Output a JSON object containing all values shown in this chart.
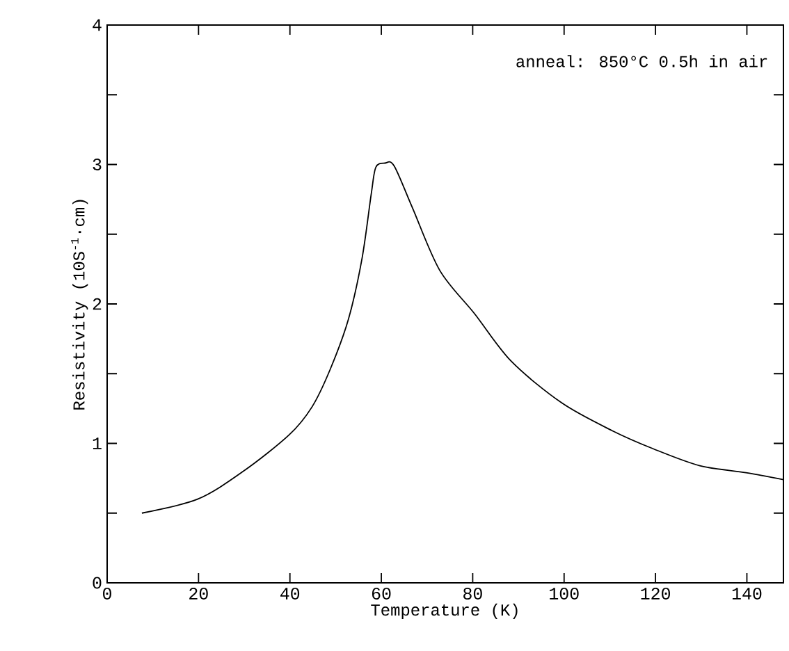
{
  "chart_data": {
    "type": "line",
    "xlabel": "Temperature (K)",
    "ylabel": "Resistivity (10S$^{-1}$·cm)",
    "annotations": [
      "anneal: 850°C 0.5h in air"
    ],
    "xlim": [
      0,
      148
    ],
    "ylim": [
      0,
      4
    ],
    "xticks": [
      0,
      20,
      40,
      60,
      80,
      100,
      120,
      140
    ],
    "yticks": [
      0,
      1,
      2,
      3,
      4
    ],
    "marker": "none",
    "line_style": "solid",
    "series": [
      {
        "color": "#000000",
        "x": [
          7.6,
          19.8,
          29.8,
          39.8,
          44.8,
          48.8,
          52.8,
          55.8,
          57.8,
          58.8,
          60.8,
          62.8,
          66.8,
          72.8,
          80.4,
          88.4,
          99.5,
          110.6,
          119.6,
          129.7,
          139.8,
          148
        ],
        "values": [
          0.5,
          0.6,
          0.8,
          1.06,
          1.26,
          1.53,
          1.89,
          2.33,
          2.79,
          2.98,
          3.01,
          2.99,
          2.69,
          2.24,
          1.93,
          1.59,
          1.29,
          1.09,
          0.96,
          0.84,
          0.79,
          0.74
        ]
      }
    ]
  }
}
